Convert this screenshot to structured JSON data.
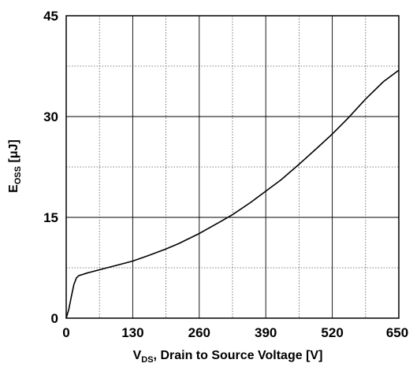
{
  "chart_data": {
    "type": "line",
    "xlabel": {
      "main": "V",
      "sub": "DS",
      "rest": ", Drain to Source Voltage [V]"
    },
    "ylabel": {
      "main": "E",
      "sub": "OSS",
      "rest": " [μJ]"
    },
    "xlim": [
      0,
      650
    ],
    "ylim": [
      0,
      45
    ],
    "x_major_ticks": [
      0,
      130,
      260,
      390,
      520,
      650
    ],
    "x_tick_labels": [
      "0",
      "130",
      "260",
      "390",
      "520",
      "650"
    ],
    "x_minor_gridlines": [
      65,
      195,
      325,
      455,
      585
    ],
    "y_major_ticks": [
      0,
      15,
      30,
      45
    ],
    "y_tick_labels": [
      "0",
      "15",
      "30",
      "45"
    ],
    "y_minor_gridlines": [
      7.5,
      22.5,
      37.5
    ],
    "grid": true,
    "series": [
      {
        "x": [
          0,
          5,
          10,
          15,
          20,
          25,
          30,
          40,
          50,
          65,
          80,
          100,
          130,
          160,
          195,
          220,
          260,
          300,
          325,
          360,
          390,
          420,
          455,
          490,
          520,
          550,
          585,
          620,
          650
        ],
        "y": [
          0,
          1.3,
          3.2,
          5.0,
          6.0,
          6.35,
          6.45,
          6.7,
          6.9,
          7.2,
          7.5,
          7.9,
          8.5,
          9.3,
          10.3,
          11.1,
          12.6,
          14.3,
          15.4,
          17.2,
          18.9,
          20.6,
          22.9,
          25.3,
          27.4,
          29.7,
          32.6,
          35.2,
          36.9
        ]
      }
    ]
  }
}
